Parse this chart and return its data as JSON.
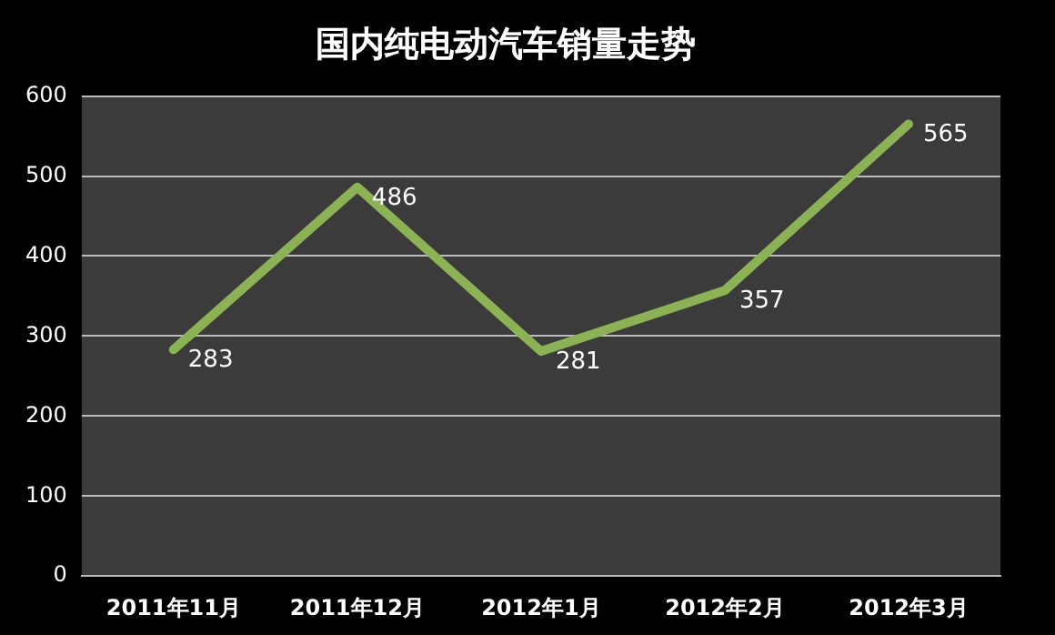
{
  "chart_data": {
    "type": "line",
    "title": "国内纯电动汽车销量走势",
    "categories": [
      "2011年11月",
      "2011年12月",
      "2012年1月",
      "2012年2月",
      "2012年3月"
    ],
    "series": [
      {
        "color": "#8db255",
        "values": [
          283,
          486,
          281,
          357,
          565
        ]
      }
    ],
    "ylim": [
      0,
      600
    ],
    "yticks": [
      0,
      100,
      200,
      300,
      400,
      500,
      600
    ],
    "grid": "y",
    "data_labels": true,
    "legend": false,
    "marker": "none",
    "line_style": "solid"
  }
}
